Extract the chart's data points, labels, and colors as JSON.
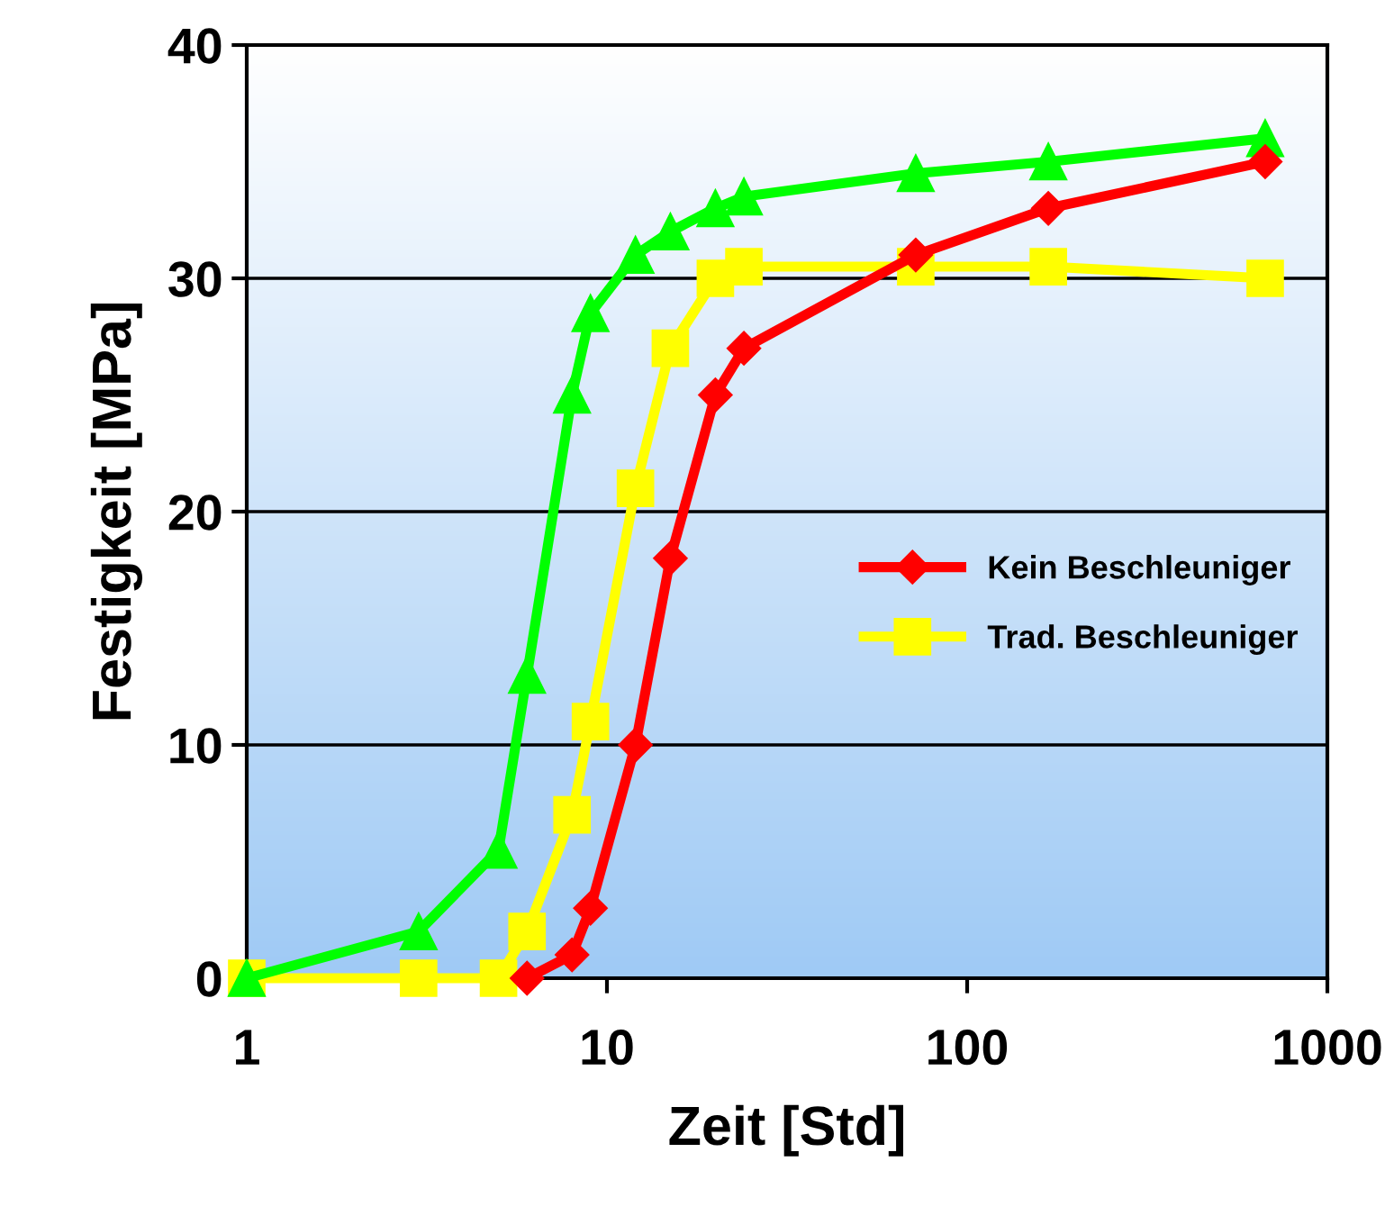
{
  "chart_data": {
    "type": "line",
    "xlabel": "Zeit [Std]",
    "ylabel": "Festigkeit [MPa]",
    "log": "x",
    "xlim": [
      1,
      1000
    ],
    "xticks": [
      1,
      10,
      100,
      1000
    ],
    "ylim": [
      0,
      40
    ],
    "yticks": [
      0,
      10,
      20,
      30,
      40
    ],
    "grid": "y",
    "legend": "right",
    "line_style": "solid",
    "series": [
      {
        "name": "Kein Beschleuniger",
        "color": "#ff0000",
        "marker": "diamond",
        "x": [
          6,
          8,
          9,
          12,
          15,
          20,
          24,
          72,
          168,
          672
        ],
        "values": [
          0,
          1,
          3,
          10,
          18,
          25,
          27,
          31,
          33,
          35
        ]
      },
      {
        "name": "Trad. Beschleuniger",
        "color": "#ffff00",
        "marker": "square",
        "x": [
          1,
          3,
          5,
          6,
          8,
          9,
          12,
          15,
          20,
          24,
          72,
          168,
          672
        ],
        "values": [
          0,
          0,
          0,
          2,
          7,
          11,
          21,
          27,
          30,
          30.5,
          30.5,
          30.5,
          30
        ]
      },
      {
        "color": "#00ff00",
        "marker": "triangle",
        "x": [
          1,
          3,
          5,
          6,
          8,
          9,
          12,
          15,
          20,
          24,
          72,
          168,
          672
        ],
        "values": [
          0,
          2,
          5.5,
          13,
          25,
          28.5,
          31,
          32,
          33,
          33.5,
          34.5,
          35,
          36
        ]
      }
    ]
  }
}
